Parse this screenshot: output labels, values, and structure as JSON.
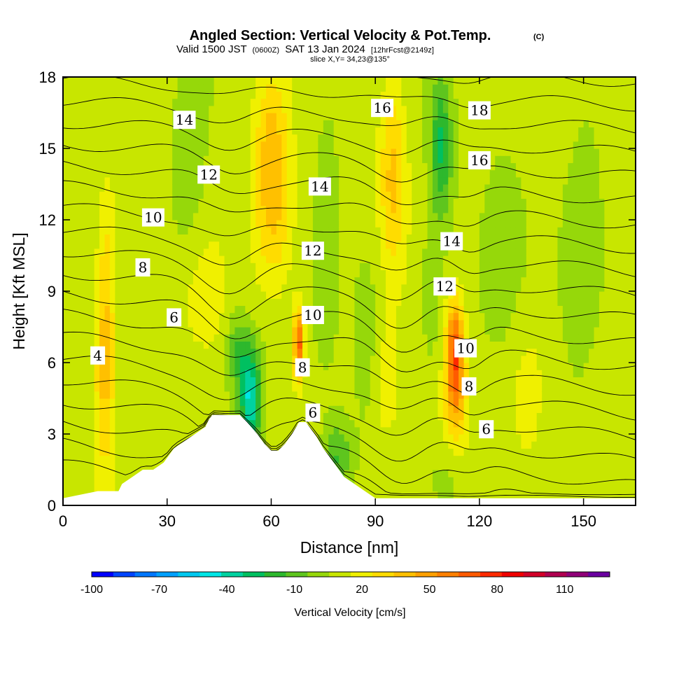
{
  "title": {
    "main": "Angled Section: Vertical Velocity & Pot.Temp.",
    "main_suffix": "(C)",
    "valid_prefix": "Valid 1500 JST",
    "valid_zulu": "(0600Z)",
    "valid_date": "SAT 13 Jan 2024",
    "forecast": "[12hrFcst@2149z]",
    "slice": "slice X,Y= 34,23@135°"
  },
  "chart_data": {
    "type": "heatmap",
    "xlabel": "Distance [nm]",
    "ylabel": "Height [Kft MSL]",
    "xlim": [
      0,
      165
    ],
    "ylim": [
      0,
      18
    ],
    "xticks": [
      0,
      30,
      60,
      90,
      120,
      150
    ],
    "xtick_labels": [
      "0",
      "30",
      "60",
      "90",
      "120",
      "150"
    ],
    "yticks": [
      0,
      3,
      6,
      9,
      12,
      15,
      18
    ],
    "ytick_labels": [
      "0",
      "3",
      "6",
      "9",
      "12",
      "15",
      "18"
    ],
    "colorbar": {
      "label": "Vertical Velocity [cm/s]",
      "min": -100,
      "max": 130,
      "step": 10,
      "tick_values": [
        -100,
        -70,
        -40,
        -10,
        20,
        50,
        80,
        110
      ],
      "tick_labels": [
        "-100",
        "-70",
        "-40",
        "-10",
        "20",
        "50",
        "80",
        "110"
      ],
      "colors": [
        "#0000ff",
        "#0044ff",
        "#0077ff",
        "#00a0ff",
        "#00c8f0",
        "#00e6e6",
        "#00d2a0",
        "#00c060",
        "#2db82d",
        "#5ec51e",
        "#96d80a",
        "#c8e600",
        "#f0f000",
        "#ffdc00",
        "#ffc000",
        "#ffa000",
        "#ff8000",
        "#ff5a00",
        "#ff2a00",
        "#f00000",
        "#d20028",
        "#b00050",
        "#900078",
        "#6a00a0"
      ]
    },
    "terrain_profile": [
      [
        0,
        0.3
      ],
      [
        10,
        0.6
      ],
      [
        16,
        0.6
      ],
      [
        17,
        0.9
      ],
      [
        20,
        1.2
      ],
      [
        23,
        1.5
      ],
      [
        26,
        1.5
      ],
      [
        29,
        1.8
      ],
      [
        32,
        2.4
      ],
      [
        35,
        2.7
      ],
      [
        38,
        3.0
      ],
      [
        41,
        3.3
      ],
      [
        42,
        3.6
      ],
      [
        43,
        3.8
      ],
      [
        51,
        3.8
      ],
      [
        53,
        3.5
      ],
      [
        56,
        3.0
      ],
      [
        58,
        2.6
      ],
      [
        60,
        2.3
      ],
      [
        62,
        2.3
      ],
      [
        64,
        2.6
      ],
      [
        66,
        3.0
      ],
      [
        68,
        3.5
      ],
      [
        70,
        3.5
      ],
      [
        73,
        2.9
      ],
      [
        75,
        2.4
      ],
      [
        78,
        1.8
      ],
      [
        81,
        1.2
      ],
      [
        84,
        0.9
      ],
      [
        87,
        0.6
      ],
      [
        90,
        0.3
      ],
      [
        165,
        0.3
      ]
    ],
    "wind_features": [
      {
        "x": 12,
        "y": 6,
        "sx": 3,
        "sy": 4.5,
        "amp": 32
      },
      {
        "x": 13,
        "y": 11,
        "sx": 3,
        "sy": 3.5,
        "amp": 12
      },
      {
        "x": 36,
        "y": 13,
        "sx": 5,
        "sy": 4.0,
        "amp": -10
      },
      {
        "x": 40,
        "y": 9,
        "sx": 8,
        "sy": 3.0,
        "amp": 10
      },
      {
        "x": 54,
        "y": 4.5,
        "sx": 3,
        "sy": 2.2,
        "amp": -55
      },
      {
        "x": 50,
        "y": 6.5,
        "sx": 3,
        "sy": 1.5,
        "amp": -25
      },
      {
        "x": 60,
        "y": 15,
        "sx": 5,
        "sy": 3.5,
        "amp": 30
      },
      {
        "x": 61,
        "y": 11.5,
        "sx": 6,
        "sy": 3.0,
        "amp": 18
      },
      {
        "x": 68,
        "y": 6.8,
        "sx": 1.6,
        "sy": 1.6,
        "amp": 60
      },
      {
        "x": 76,
        "y": 12,
        "sx": 3,
        "sy": 5.0,
        "amp": -10
      },
      {
        "x": 79,
        "y": 2.0,
        "sx": 4,
        "sy": 1.5,
        "amp": -25
      },
      {
        "x": 88,
        "y": 7,
        "sx": 4,
        "sy": 3.5,
        "amp": -10
      },
      {
        "x": 95,
        "y": 14,
        "sx": 4,
        "sy": 4.0,
        "amp": 30
      },
      {
        "x": 93,
        "y": 5,
        "sx": 4,
        "sy": 2.5,
        "amp": 15
      },
      {
        "x": 109,
        "y": 15,
        "sx": 3,
        "sy": 3.0,
        "amp": -35
      },
      {
        "x": 106,
        "y": 9,
        "sx": 3,
        "sy": 3.0,
        "amp": -10
      },
      {
        "x": 113,
        "y": 6.5,
        "sx": 2.5,
        "sy": 2.2,
        "amp": 60
      },
      {
        "x": 113,
        "y": 4,
        "sx": 4,
        "sy": 2.5,
        "amp": 25
      },
      {
        "x": 112,
        "y": 1.5,
        "sx": 4,
        "sy": 1.5,
        "amp": -10
      },
      {
        "x": 127,
        "y": 12,
        "sx": 6,
        "sy": 5.0,
        "amp": -5
      },
      {
        "x": 134,
        "y": 5,
        "sx": 5,
        "sy": 3.0,
        "amp": 12
      },
      {
        "x": 150,
        "y": 10,
        "sx": 6,
        "sy": 4.0,
        "amp": -15
      },
      {
        "x": 157,
        "y": 4,
        "sx": 5,
        "sy": 3.0,
        "amp": 8
      }
    ],
    "isentrope_values": [
      1,
      2,
      3,
      4,
      5,
      6,
      7,
      8,
      9,
      10,
      11,
      12,
      13,
      14,
      15,
      16,
      17,
      18,
      19,
      20
    ],
    "isentrope_bumps": [
      {
        "x": 48,
        "s": 10,
        "amp": -1.3
      },
      {
        "x": 97,
        "s": 9,
        "amp": -1.1
      },
      {
        "x": 117,
        "s": 6,
        "amp": -0.6
      }
    ],
    "contour_labels": [
      {
        "text": "4",
        "x": 10,
        "y": 6.3
      },
      {
        "text": "6",
        "x": 32,
        "y": 7.9
      },
      {
        "text": "8",
        "x": 23,
        "y": 10.0
      },
      {
        "text": "10",
        "x": 26,
        "y": 12.1
      },
      {
        "text": "12",
        "x": 42,
        "y": 13.9
      },
      {
        "text": "14",
        "x": 35,
        "y": 16.2
      },
      {
        "text": "6",
        "x": 72,
        "y": 3.9
      },
      {
        "text": "8",
        "x": 69,
        "y": 5.8
      },
      {
        "text": "10",
        "x": 72,
        "y": 8.0
      },
      {
        "text": "12",
        "x": 72,
        "y": 10.7
      },
      {
        "text": "14",
        "x": 74,
        "y": 13.4
      },
      {
        "text": "16",
        "x": 92,
        "y": 16.7
      },
      {
        "text": "6",
        "x": 122,
        "y": 3.2
      },
      {
        "text": "8",
        "x": 117,
        "y": 5.0
      },
      {
        "text": "10",
        "x": 116,
        "y": 6.6
      },
      {
        "text": "12",
        "x": 110,
        "y": 9.2
      },
      {
        "text": "14",
        "x": 112,
        "y": 11.1
      },
      {
        "text": "16",
        "x": 120,
        "y": 14.5
      },
      {
        "text": "18",
        "x": 120,
        "y": 16.6
      }
    ]
  }
}
